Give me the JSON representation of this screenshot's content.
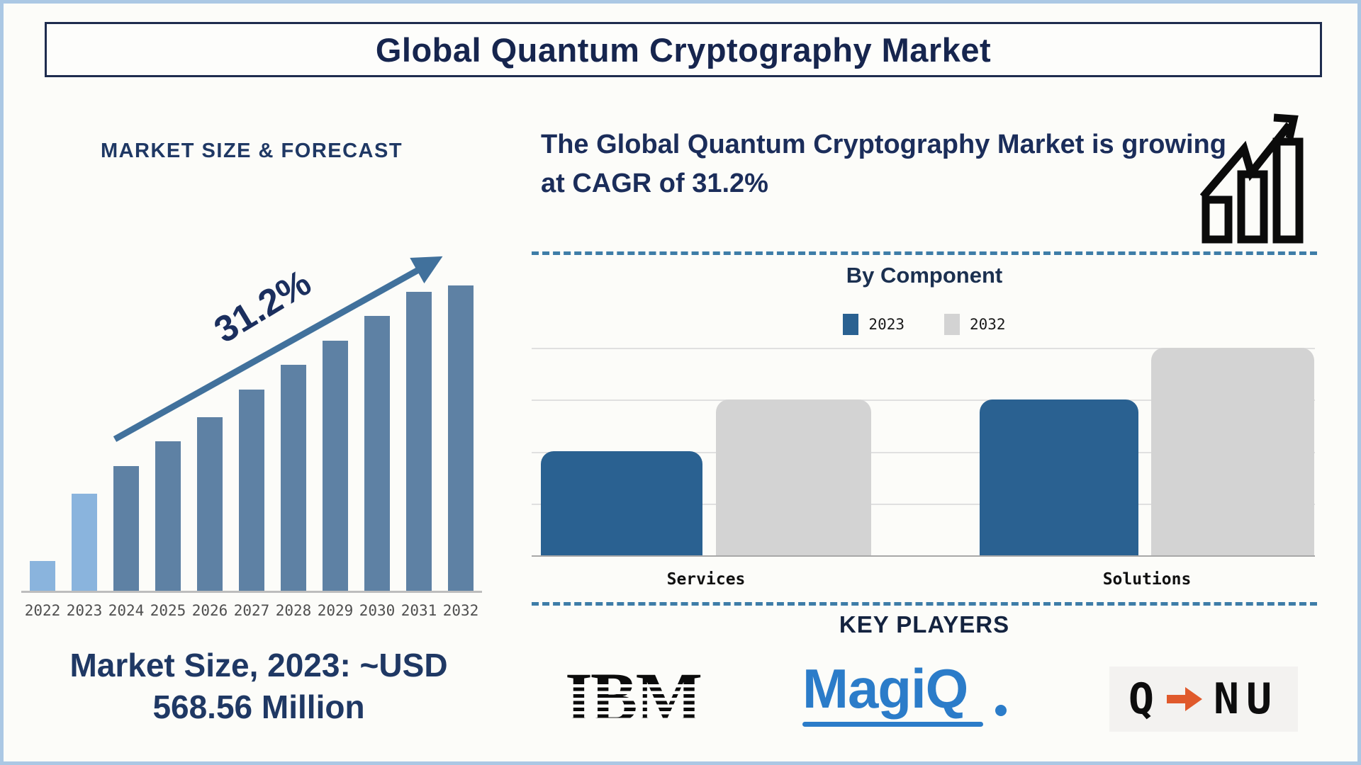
{
  "title": "Global Quantum Cryptography Market",
  "left": {
    "note": "Market Size, 2023: ~USD 568.56 Million"
  },
  "right": {
    "cagr_statement": "The Global Quantum Cryptography Market is growing at CAGR of 31.2%",
    "key_players_title": "KEY PLAYERS",
    "players": [
      {
        "name": "IBM",
        "logo_text": "IBM"
      },
      {
        "name": "MagiQ",
        "logo_text": "MagiQ"
      },
      {
        "name": "QNu",
        "logo_left": "Q",
        "logo_right": "NU"
      }
    ]
  },
  "chart_data": [
    {
      "id": "market-size-forecast",
      "type": "bar",
      "title": "MARKET SIZE & FORECAST",
      "categories": [
        "2022",
        "2023",
        "2024",
        "2025",
        "2026",
        "2027",
        "2028",
        "2029",
        "2030",
        "2031",
        "2032"
      ],
      "values_pct_of_max": [
        10,
        32,
        41,
        49,
        57,
        66,
        74,
        82,
        90,
        98,
        100
      ],
      "value_axis": "none — stylized illustration, no numeric scale shown",
      "annotation": "31.2%",
      "annotation_meaning": "CAGR trend arrow over 2024-2032 bars",
      "highlight_light_bars": [
        "2022",
        "2023"
      ],
      "grid": false,
      "xlabel": "",
      "ylabel": ""
    },
    {
      "id": "by-component",
      "type": "grouped-bar",
      "title": "By Component",
      "categories": [
        "Services",
        "Solutions"
      ],
      "series": [
        {
          "name": "2023",
          "values": [
            2,
            3
          ],
          "color": "#2a6191"
        },
        {
          "name": "2032",
          "values": [
            3,
            4
          ],
          "color": "#d3d3d3"
        }
      ],
      "value_units": "relative units — one gridline interval = 1, no numeric labels shown",
      "ylim": [
        0,
        4
      ],
      "grid": true,
      "legend_position": "top"
    }
  ],
  "colors": {
    "navy_text": "#1b2a55",
    "forecast_bar_dark": "#5e81a4",
    "forecast_bar_light": "#8ab4dd",
    "trend_arrow_blue": "#41719c",
    "component_blue": "#2a6191",
    "component_gray": "#d3d3d3",
    "divider_dash_blue": "#3e7da8",
    "frame_border_blue": "#abc8e4",
    "magiq_blue": "#2b7cc9",
    "qnu_arrow_orange": "#e05a2c",
    "icon_black": "#0b0b0b"
  }
}
